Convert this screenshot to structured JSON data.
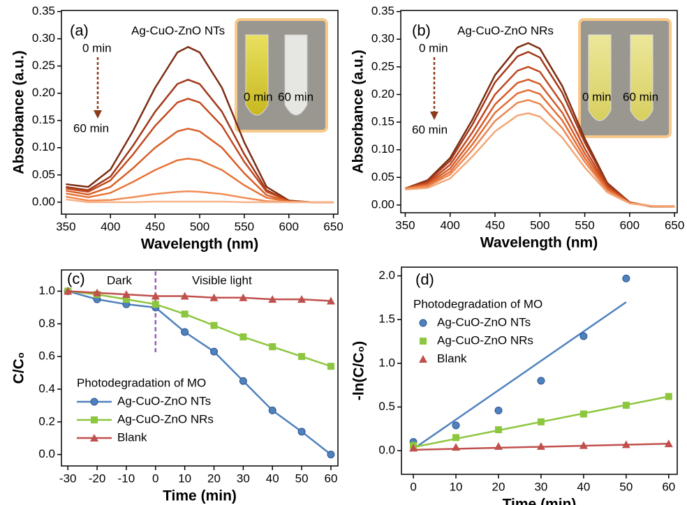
{
  "chart_data": [
    {
      "type": "line",
      "xlabel": "Wavelength (nm)",
      "ylabel": "Absorbance (a.u.)",
      "annotations": [
        "(a)",
        "Ag-CuO-ZnO NTs",
        "0 min",
        "60 min",
        "0 min",
        "60 min"
      ],
      "x": [
        350,
        375,
        400,
        425,
        450,
        475,
        487,
        500,
        525,
        550,
        575,
        600,
        625,
        650
      ],
      "series": [
        {
          "color": "#7b2d12",
          "values": [
            0.033,
            0.028,
            0.06,
            0.13,
            0.21,
            0.275,
            0.285,
            0.275,
            0.21,
            0.11,
            0.028,
            0.003,
            0,
            0
          ]
        },
        {
          "color": "#a0391a",
          "values": [
            0.028,
            0.022,
            0.047,
            0.103,
            0.166,
            0.217,
            0.225,
            0.217,
            0.166,
            0.088,
            0.022,
            0.002,
            0,
            0
          ]
        },
        {
          "color": "#c24a1f",
          "values": [
            0.025,
            0.019,
            0.04,
            0.087,
            0.14,
            0.183,
            0.19,
            0.183,
            0.14,
            0.074,
            0.019,
            0.002,
            0,
            0
          ]
        },
        {
          "color": "#d95e27",
          "values": [
            0.021,
            0.014,
            0.028,
            0.062,
            0.1,
            0.13,
            0.135,
            0.13,
            0.1,
            0.053,
            0.013,
            0.001,
            0,
            0
          ]
        },
        {
          "color": "#e67337",
          "values": [
            0.016,
            0.009,
            0.017,
            0.037,
            0.059,
            0.077,
            0.08,
            0.077,
            0.059,
            0.031,
            0.008,
            0.001,
            0,
            0
          ]
        },
        {
          "color": "#f08c55",
          "values": [
            0.01,
            0.003,
            0.004,
            0.009,
            0.015,
            0.019,
            0.02,
            0.019,
            0.015,
            0.008,
            0.002,
            0,
            0,
            0
          ]
        },
        {
          "color": "#f6b48a",
          "values": [
            0.005,
            0,
            0,
            0,
            0.001,
            0.001,
            0.001,
            0.001,
            0.001,
            0,
            0,
            0,
            0,
            0
          ]
        }
      ],
      "xlim": [
        345,
        655
      ],
      "xticks": [
        350,
        400,
        450,
        500,
        550,
        600,
        650
      ],
      "ylim": [
        -0.022,
        0.352
      ],
      "yticks": [
        {
          "value": 0,
          "label": "0.00"
        },
        0.05,
        {
          "value": 0.1,
          "label": "0.10"
        },
        0.15,
        {
          "value": 0.2,
          "label": "0.20"
        },
        0.25,
        {
          "value": 0.3,
          "label": "0.30"
        },
        0.35
      ]
    },
    {
      "type": "line",
      "xlabel": "Wavelength (nm)",
      "ylabel": "Absorbance (a.u.)",
      "annotations": [
        "(b)",
        "Ag-CuO-ZnO NRs",
        "0 min",
        "60 min",
        "0 min",
        "60 min"
      ],
      "x": [
        350,
        375,
        400,
        425,
        450,
        475,
        487,
        500,
        525,
        550,
        575,
        600,
        625,
        650
      ],
      "series": [
        {
          "color": "#7b2d12",
          "values": [
            0.03,
            0.045,
            0.085,
            0.155,
            0.235,
            0.285,
            0.293,
            0.283,
            0.215,
            0.12,
            0.04,
            0.005,
            -0.003,
            -0.003
          ]
        },
        {
          "color": "#a3391a",
          "values": [
            0.03,
            0.043,
            0.08,
            0.146,
            0.222,
            0.269,
            0.277,
            0.267,
            0.203,
            0.113,
            0.038,
            0.005,
            -0.003,
            -0.003
          ]
        },
        {
          "color": "#c04820",
          "values": [
            0.03,
            0.04,
            0.073,
            0.132,
            0.2,
            0.243,
            0.25,
            0.241,
            0.183,
            0.102,
            0.034,
            0.004,
            -0.003,
            -0.003
          ]
        },
        {
          "color": "#d45a28",
          "values": [
            0.03,
            0.038,
            0.066,
            0.12,
            0.182,
            0.221,
            0.227,
            0.219,
            0.167,
            0.093,
            0.031,
            0.004,
            -0.002,
            -0.003
          ]
        },
        {
          "color": "#e26d34",
          "values": [
            0.03,
            0.036,
            0.06,
            0.11,
            0.167,
            0.202,
            0.208,
            0.201,
            0.153,
            0.085,
            0.028,
            0.004,
            -0.002,
            -0.003
          ]
        },
        {
          "color": "#ec8550",
          "values": [
            0.029,
            0.034,
            0.055,
            0.1,
            0.152,
            0.185,
            0.19,
            0.183,
            0.139,
            0.078,
            0.026,
            0.003,
            -0.002,
            -0.002
          ]
        },
        {
          "color": "#f3a674",
          "values": [
            0.028,
            0.031,
            0.048,
            0.088,
            0.133,
            0.162,
            0.166,
            0.16,
            0.122,
            0.068,
            0.023,
            0.003,
            -0.002,
            -0.002
          ]
        }
      ],
      "xlim": [
        345,
        653
      ],
      "xticks": [
        350,
        400,
        450,
        500,
        550,
        600,
        650
      ],
      "ylim": [
        -0.014,
        0.352
      ],
      "yticks": [
        {
          "value": 0,
          "label": "0.00"
        },
        0.05,
        {
          "value": 0.1,
          "label": "0.10"
        },
        0.15,
        {
          "value": 0.2,
          "label": "0.20"
        },
        0.25,
        {
          "value": 0.3,
          "label": "0.30"
        },
        0.35
      ]
    },
    {
      "type": "line",
      "xlabel": "Time (min)",
      "ylabel": "C/C₀",
      "annotations": [
        "(c)",
        "Dark",
        "Visible light"
      ],
      "vline": 0,
      "legend_title": "Photodegradation of MO",
      "legend": "lower left",
      "x": [
        -30,
        -20,
        -10,
        0,
        10,
        20,
        30,
        40,
        50,
        60
      ],
      "series": [
        {
          "name": "Ag-CuO-ZnO NTs",
          "color": "#4f81bd",
          "marker": "circle",
          "values": [
            1.0,
            0.95,
            0.92,
            0.9,
            0.75,
            0.63,
            0.45,
            0.27,
            0.14,
            0.0
          ]
        },
        {
          "name": "Ag-CuO-ZnO NRs",
          "color": "#8dc63f",
          "marker": "square",
          "values": [
            1.0,
            0.98,
            0.95,
            0.92,
            0.86,
            0.79,
            0.72,
            0.66,
            0.6,
            0.54
          ]
        },
        {
          "name": "Blank",
          "color": "#c0504d",
          "marker": "triangle",
          "values": [
            1.0,
            0.99,
            0.98,
            0.97,
            0.97,
            0.96,
            0.96,
            0.95,
            0.95,
            0.94
          ]
        }
      ],
      "xlim": [
        -32.2,
        62.4
      ],
      "xticks": [
        -30,
        -20,
        -10,
        0,
        10,
        20,
        30,
        40,
        50,
        60
      ],
      "ylim": [
        -0.07,
        1.13
      ],
      "yticks": [
        {
          "value": 0,
          "label": "0.0"
        },
        0.2,
        0.4,
        0.6,
        0.8,
        {
          "value": 1,
          "label": "1.0"
        }
      ]
    },
    {
      "type": "scatter",
      "xlabel": "Time (min)",
      "ylabel": "-ln(C/C₀)",
      "annotations": [
        "(d)"
      ],
      "legend_title": "Photodegradation of MO",
      "legend": "upper left",
      "series": [
        {
          "name": "Ag-CuO-ZnO NTs",
          "color": "#4f81bd",
          "marker": "circle",
          "x": [
            0,
            10,
            20,
            30,
            40,
            50
          ],
          "values": [
            0.1,
            0.29,
            0.46,
            0.8,
            1.31,
            1.97
          ],
          "fit": {
            "x": [
              0,
              50
            ],
            "values": [
              0.02,
              1.7
            ]
          }
        },
        {
          "name": "Ag-CuO-ZnO NRs",
          "color": "#8dc63f",
          "marker": "square",
          "x": [
            0,
            10,
            20,
            30,
            40,
            50,
            60
          ],
          "values": [
            0.06,
            0.15,
            0.24,
            0.33,
            0.42,
            0.52,
            0.62
          ],
          "fit": {
            "x": [
              0,
              60
            ],
            "values": [
              0.04,
              0.62
            ]
          }
        },
        {
          "name": "Blank",
          "color": "#c0504d",
          "marker": "triangle",
          "x": [
            0,
            10,
            20,
            30,
            40,
            50,
            60
          ],
          "values": [
            0.03,
            0.04,
            0.05,
            0.05,
            0.06,
            0.07,
            0.08
          ],
          "fit": {
            "x": [
              0,
              60
            ],
            "values": [
              0.01,
              0.08
            ]
          }
        }
      ],
      "xlim": [
        -2.8,
        62
      ],
      "xticks": [
        0,
        10,
        20,
        30,
        40,
        50,
        60
      ],
      "ylim": [
        -0.27,
        2.1
      ],
      "yticks": [
        {
          "value": 0,
          "label": "0.0"
        },
        {
          "value": 0.5,
          "label": "0.5"
        },
        {
          "value": 1,
          "label": "1.0"
        },
        {
          "value": 1.5,
          "label": "1.5"
        },
        {
          "value": 2,
          "label": "2.0"
        }
      ]
    }
  ]
}
